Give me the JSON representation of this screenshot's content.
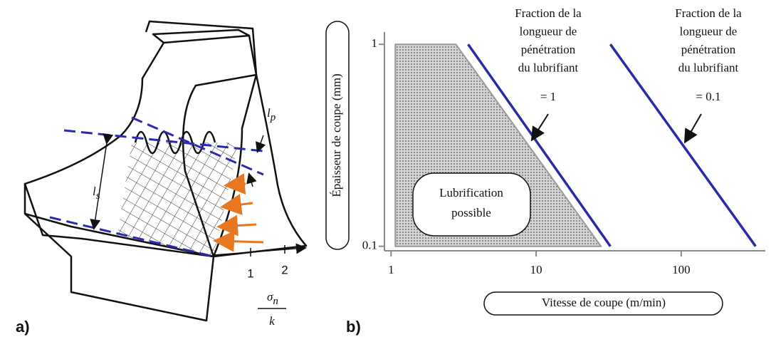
{
  "panel_a": {
    "label": "a)",
    "ls": {
      "symbol": "l",
      "subscript": "s"
    },
    "lp": {
      "symbol": "l",
      "subscript": "p"
    },
    "ticks": [
      "1",
      "2"
    ],
    "ratio": {
      "numerator": "σ",
      "numerator_subscript": "n",
      "denominator": "k"
    }
  },
  "chart_data": {
    "type": "line",
    "panel_label": "b)",
    "xlabel": "Vitesse de coupe (m/min)",
    "ylabel": "Épaisseur de coupe (mm)",
    "xscale": "log",
    "yscale": "log",
    "xlim": [
      0.9,
      380
    ],
    "ylim": [
      0.095,
      1.15
    ],
    "xticks": [
      1,
      10,
      100
    ],
    "yticks": [
      0.1,
      1
    ],
    "series": [
      {
        "color": "#d4d4d4",
        "fill": true,
        "x": [
          1.07,
          2.8,
          28,
          1.07
        ],
        "values": [
          1,
          1,
          0.1,
          0.1
        ]
      },
      {
        "color": "#2a2aa8",
        "fill": false,
        "x": [
          3.4,
          32.5
        ],
        "values": [
          1,
          0.1
        ]
      },
      {
        "color": "#2a2aa8",
        "fill": false,
        "x": [
          32.5,
          326
        ],
        "values": [
          1,
          0.1
        ]
      }
    ],
    "annotations": [
      {
        "lines": [
          "Lubrification",
          "possible"
        ]
      },
      {
        "lines": [
          "Fraction de la",
          "longueur de",
          "pénétration",
          "du lubrifiant",
          "= 1"
        ]
      },
      {
        "lines": [
          "Fraction de la",
          "longueur de",
          "pénétration",
          "du lubrifiant",
          "= 0.1"
        ]
      }
    ]
  }
}
